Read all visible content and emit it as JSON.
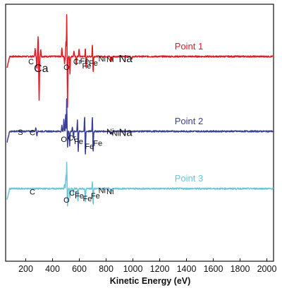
{
  "chart_data": {
    "type": "line",
    "title": "",
    "xlabel": "Kinetic Energy (eV)",
    "ylabel": "",
    "xlim": [
      50,
      2050
    ],
    "x_ticks": [
      200,
      400,
      600,
      800,
      1000,
      1200,
      1400,
      1600,
      1800,
      2000
    ],
    "grid": false,
    "legend": "none; series names printed beside each trace at top-right",
    "series": [
      {
        "name": "Point 1",
        "color": "#e31b23",
        "baseline": 0,
        "peaks": [
          {
            "x": 270,
            "a": 0.3,
            "w": 3
          },
          {
            "x": 283,
            "a": -0.45,
            "w": 3
          },
          {
            "x": 292,
            "a": 0.7,
            "w": 3
          },
          {
            "x": 300,
            "a": -1.55,
            "w": 3
          },
          {
            "x": 312,
            "a": 0.25,
            "w": 3
          },
          {
            "x": 470,
            "a": 0.3,
            "w": 3
          },
          {
            "x": 490,
            "a": -0.25,
            "w": 3
          },
          {
            "x": 500,
            "a": 0.5,
            "w": 2.5
          },
          {
            "x": 506,
            "a": 1.5,
            "w": 2.5
          },
          {
            "x": 512,
            "a": -1.8,
            "w": 2.5
          },
          {
            "x": 530,
            "a": -0.6,
            "w": 3
          },
          {
            "x": 560,
            "a": 0.2,
            "w": 3
          },
          {
            "x": 577,
            "a": -0.3,
            "w": 3
          },
          {
            "x": 598,
            "a": 0.25,
            "w": 3
          },
          {
            "x": 645,
            "a": 0.3,
            "w": 3
          },
          {
            "x": 651,
            "a": -0.45,
            "w": 3
          },
          {
            "x": 698,
            "a": 0.45,
            "w": 3
          },
          {
            "x": 703,
            "a": -0.6,
            "w": 3
          },
          {
            "x": 835,
            "a": -0.15,
            "w": 3
          },
          {
            "x": 846,
            "a": -0.15,
            "w": 3
          },
          {
            "x": 990,
            "a": -0.1,
            "w": 3
          }
        ],
        "labels": [
          {
            "text": "C",
            "x": 240,
            "dy": -0.28,
            "size": 11
          },
          {
            "text": "Ca",
            "x": 315,
            "dy": -0.55,
            "size": 16
          },
          {
            "text": "O",
            "x": 505,
            "dy": -0.48,
            "size": 11
          },
          {
            "text": "Cr",
            "x": 585,
            "dy": -0.28,
            "size": 11
          },
          {
            "text": "Fe",
            "x": 640,
            "dy": -0.25,
            "size": 11
          },
          {
            "text": "Fe",
            "x": 655,
            "dy": -0.42,
            "size": 11
          },
          {
            "text": "Fe",
            "x": 705,
            "dy": -0.32,
            "size": 11
          },
          {
            "text": "Ni",
            "x": 770,
            "dy": -0.17,
            "size": 11
          },
          {
            "text": "Ni",
            "x": 830,
            "dy": -0.2,
            "size": 11
          },
          {
            "text": "Na",
            "x": 945,
            "dy": -0.2,
            "size": 15
          }
        ]
      },
      {
        "name": "Point 2",
        "color": "#3a3f98",
        "baseline": -2.65,
        "peaks": [
          {
            "x": 275,
            "a": 0.15,
            "w": 3
          },
          {
            "x": 283,
            "a": -0.15,
            "w": 3
          },
          {
            "x": 470,
            "a": 0.2,
            "w": 3
          },
          {
            "x": 485,
            "a": 0.45,
            "w": 3
          },
          {
            "x": 498,
            "a": 0.6,
            "w": 2.5
          },
          {
            "x": 506,
            "a": 1.15,
            "w": 2.5
          },
          {
            "x": 512,
            "a": -0.55,
            "w": 2.5
          },
          {
            "x": 528,
            "a": -0.5,
            "w": 3
          },
          {
            "x": 548,
            "a": 0.15,
            "w": 3
          },
          {
            "x": 556,
            "a": -0.25,
            "w": 3
          },
          {
            "x": 586,
            "a": 0.4,
            "w": 3
          },
          {
            "x": 592,
            "a": -0.7,
            "w": 3
          },
          {
            "x": 640,
            "a": 0.55,
            "w": 3
          },
          {
            "x": 645,
            "a": -0.9,
            "w": 3
          },
          {
            "x": 698,
            "a": 0.55,
            "w": 3
          },
          {
            "x": 703,
            "a": -0.8,
            "w": 3
          },
          {
            "x": 835,
            "a": -0.12,
            "w": 3
          },
          {
            "x": 845,
            "a": -0.12,
            "w": 3
          }
        ],
        "labels": [
          {
            "text": "S",
            "x": 160,
            "dy": -0.12,
            "size": 11
          },
          {
            "text": "C",
            "x": 250,
            "dy": -0.14,
            "size": 11
          },
          {
            "text": "O",
            "x": 485,
            "dy": -0.38,
            "size": 11
          },
          {
            "text": "Cr",
            "x": 545,
            "dy": -0.32,
            "size": 11
          },
          {
            "text": "Fe",
            "x": 595,
            "dy": -0.45,
            "size": 11
          },
          {
            "text": "Fe",
            "x": 675,
            "dy": -0.62,
            "size": 11
          },
          {
            "text": "Fe",
            "x": 738,
            "dy": -0.51,
            "size": 11
          },
          {
            "text": "Ni",
            "x": 830,
            "dy": -0.1,
            "size": 11
          },
          {
            "text": "Ni",
            "x": 870,
            "dy": -0.16,
            "size": 11
          },
          {
            "text": "Na",
            "x": 945,
            "dy": -0.16,
            "size": 15
          }
        ]
      },
      {
        "name": "Point 3",
        "color": "#6cc5d8",
        "baseline": -4.68,
        "peaks": [
          {
            "x": 490,
            "a": 0.15,
            "w": 3
          },
          {
            "x": 500,
            "a": 0.45,
            "w": 2.5
          },
          {
            "x": 506,
            "a": 0.95,
            "w": 2.5
          },
          {
            "x": 512,
            "a": -0.6,
            "w": 2.5
          },
          {
            "x": 530,
            "a": -0.35,
            "w": 3
          },
          {
            "x": 556,
            "a": -0.2,
            "w": 3
          },
          {
            "x": 590,
            "a": -0.45,
            "w": 3
          },
          {
            "x": 645,
            "a": -0.5,
            "w": 3
          },
          {
            "x": 698,
            "a": 0.25,
            "w": 3
          },
          {
            "x": 703,
            "a": -0.6,
            "w": 3
          },
          {
            "x": 835,
            "a": -0.1,
            "w": 3
          },
          {
            "x": 846,
            "a": -0.08,
            "w": 3
          }
        ],
        "labels": [
          {
            "text": "C",
            "x": 250,
            "dy": -0.21,
            "size": 11
          },
          {
            "text": "O",
            "x": 505,
            "dy": -0.5,
            "size": 11
          },
          {
            "text": "Cr",
            "x": 555,
            "dy": -0.24,
            "size": 11
          },
          {
            "text": "Fe",
            "x": 600,
            "dy": -0.35,
            "size": 11
          },
          {
            "text": "Fe",
            "x": 660,
            "dy": -0.45,
            "size": 11
          },
          {
            "text": "Fe",
            "x": 720,
            "dy": -0.35,
            "size": 11
          },
          {
            "text": "Ni",
            "x": 770,
            "dy": -0.16,
            "size": 11
          },
          {
            "text": "Ni",
            "x": 830,
            "dy": -0.2,
            "size": 11
          }
        ]
      }
    ]
  }
}
